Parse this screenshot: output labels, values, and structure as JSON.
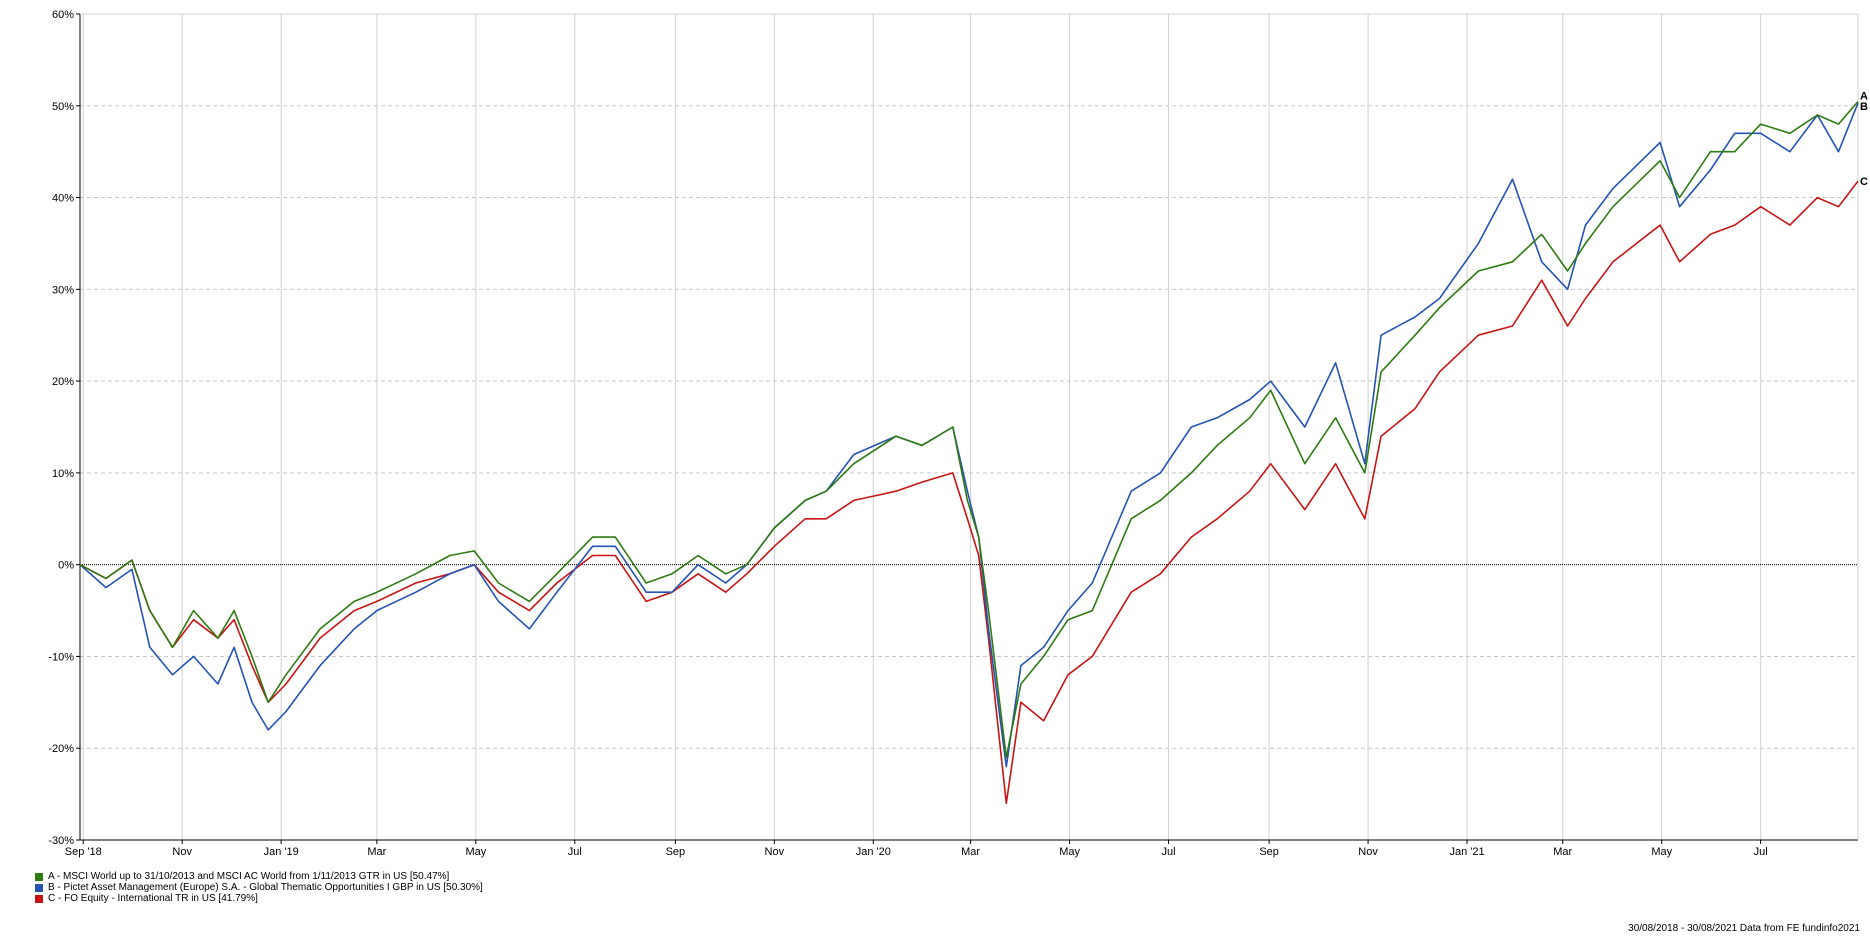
{
  "chart_data": {
    "type": "line",
    "title": "",
    "xlabel": "",
    "ylabel": "",
    "ylim": [
      -30,
      60
    ],
    "yticks": [
      -30,
      -20,
      -10,
      0,
      10,
      20,
      30,
      40,
      50,
      60
    ],
    "ytick_labels": [
      "-30%",
      "-20%",
      "-10%",
      "0%",
      "10%",
      "20%",
      "30%",
      "40%",
      "50%",
      "60%"
    ],
    "xrange": [
      "2018-08-30",
      "2021-08-30"
    ],
    "xticks": [
      {
        "date": "2018-09-01",
        "label": "Sep '18"
      },
      {
        "date": "2018-11-01",
        "label": "Nov"
      },
      {
        "date": "2019-01-01",
        "label": "Jan '19"
      },
      {
        "date": "2019-03-01",
        "label": "Mar"
      },
      {
        "date": "2019-05-01",
        "label": "May"
      },
      {
        "date": "2019-07-01",
        "label": "Jul"
      },
      {
        "date": "2019-09-01",
        "label": "Sep"
      },
      {
        "date": "2019-11-01",
        "label": "Nov"
      },
      {
        "date": "2020-01-01",
        "label": "Jan '20"
      },
      {
        "date": "2020-03-01",
        "label": "Mar"
      },
      {
        "date": "2020-05-01",
        "label": "May"
      },
      {
        "date": "2020-07-01",
        "label": "Jul"
      },
      {
        "date": "2020-09-01",
        "label": "Sep"
      },
      {
        "date": "2020-11-01",
        "label": "Nov"
      },
      {
        "date": "2021-01-01",
        "label": "Jan '21"
      },
      {
        "date": "2021-03-01",
        "label": "Mar"
      },
      {
        "date": "2021-05-01",
        "label": "May"
      },
      {
        "date": "2021-07-01",
        "label": "Jul"
      }
    ],
    "grid": true,
    "zero_line": true,
    "legend_position": "bottom-left",
    "series": [
      {
        "id": "A",
        "name": "A - MSCI World up to 31/10/2013 and MSCI AC World from 1/11/2013 GTR in US [50.47%]",
        "color": "#2f7a12",
        "x": [
          "2018-08-30",
          "2018-09-15",
          "2018-10-01",
          "2018-10-12",
          "2018-10-26",
          "2018-11-08",
          "2018-11-23",
          "2018-12-03",
          "2018-12-14",
          "2018-12-24",
          "2019-01-04",
          "2019-01-25",
          "2019-02-15",
          "2019-03-01",
          "2019-03-25",
          "2019-04-15",
          "2019-04-30",
          "2019-05-15",
          "2019-06-03",
          "2019-06-20",
          "2019-07-12",
          "2019-07-26",
          "2019-08-14",
          "2019-08-30",
          "2019-09-15",
          "2019-10-02",
          "2019-10-15",
          "2019-11-01",
          "2019-11-20",
          "2019-12-03",
          "2019-12-20",
          "2020-01-15",
          "2020-01-31",
          "2020-02-19",
          "2020-02-28",
          "2020-03-06",
          "2020-03-12",
          "2020-03-23",
          "2020-04-01",
          "2020-04-15",
          "2020-04-30",
          "2020-05-15",
          "2020-06-08",
          "2020-06-26",
          "2020-07-15",
          "2020-07-31",
          "2020-08-20",
          "2020-09-02",
          "2020-09-23",
          "2020-10-12",
          "2020-10-30",
          "2020-11-09",
          "2020-11-30",
          "2020-12-15",
          "2021-01-08",
          "2021-01-29",
          "2021-02-16",
          "2021-03-04",
          "2021-03-15",
          "2021-04-01",
          "2021-04-30",
          "2021-05-12",
          "2021-05-31",
          "2021-06-15",
          "2021-07-01",
          "2021-07-19",
          "2021-08-05",
          "2021-08-18",
          "2021-08-30"
        ],
        "y": [
          0,
          -1.5,
          0.5,
          -5,
          -9,
          -5,
          -8,
          -5,
          -10,
          -15,
          -12,
          -7,
          -4,
          -3,
          -1,
          1,
          1.5,
          -2,
          -4,
          -1,
          3,
          3,
          -2,
          -1,
          1,
          -1,
          0,
          4,
          7,
          8,
          11,
          14,
          13,
          15,
          7,
          3,
          -5,
          -21,
          -13,
          -10,
          -6,
          -5,
          5,
          7,
          10,
          13,
          16,
          19,
          11,
          16,
          10,
          21,
          25,
          28,
          32,
          33,
          36,
          32,
          35,
          39,
          44,
          40,
          45,
          45,
          48,
          47,
          49,
          48,
          50.47
        ]
      },
      {
        "id": "B",
        "name": "B - Pictet Asset Management (Europe) S.A. - Global Thematic Opportunities I GBP in US [50.30%]",
        "color": "#2453b4",
        "x": [
          "2018-08-30",
          "2018-09-15",
          "2018-10-01",
          "2018-10-12",
          "2018-10-26",
          "2018-11-08",
          "2018-11-23",
          "2018-12-03",
          "2018-12-14",
          "2018-12-24",
          "2019-01-04",
          "2019-01-25",
          "2019-02-15",
          "2019-03-01",
          "2019-03-25",
          "2019-04-15",
          "2019-04-30",
          "2019-05-15",
          "2019-06-03",
          "2019-06-20",
          "2019-07-12",
          "2019-07-26",
          "2019-08-14",
          "2019-08-30",
          "2019-09-15",
          "2019-10-02",
          "2019-10-15",
          "2019-11-01",
          "2019-11-20",
          "2019-12-03",
          "2019-12-20",
          "2020-01-15",
          "2020-01-31",
          "2020-02-19",
          "2020-02-28",
          "2020-03-06",
          "2020-03-12",
          "2020-03-23",
          "2020-04-01",
          "2020-04-15",
          "2020-04-30",
          "2020-05-15",
          "2020-06-08",
          "2020-06-26",
          "2020-07-15",
          "2020-07-31",
          "2020-08-20",
          "2020-09-02",
          "2020-09-23",
          "2020-10-12",
          "2020-10-30",
          "2020-11-09",
          "2020-11-30",
          "2020-12-15",
          "2021-01-08",
          "2021-01-29",
          "2021-02-16",
          "2021-03-04",
          "2021-03-15",
          "2021-04-01",
          "2021-04-30",
          "2021-05-12",
          "2021-05-31",
          "2021-06-15",
          "2021-07-01",
          "2021-07-19",
          "2021-08-05",
          "2021-08-18",
          "2021-08-30"
        ],
        "y": [
          0,
          -2.5,
          -0.5,
          -9,
          -12,
          -10,
          -13,
          -9,
          -15,
          -18,
          -16,
          -11,
          -7,
          -5,
          -3,
          -1,
          0,
          -4,
          -7,
          -3,
          2,
          2,
          -3,
          -3,
          0,
          -2,
          0,
          4,
          7,
          8,
          12,
          14,
          13,
          15,
          8,
          3,
          -7,
          -22,
          -11,
          -9,
          -5,
          -2,
          8,
          10,
          15,
          16,
          18,
          20,
          15,
          22,
          11,
          25,
          27,
          29,
          35,
          42,
          33,
          30,
          37,
          41,
          46,
          39,
          43,
          47,
          47,
          45,
          49,
          45,
          50.3
        ]
      },
      {
        "id": "C",
        "name": "C - FO Equity - International TR in US [41.79%]",
        "color": "#c81414",
        "x": [
          "2018-08-30",
          "2018-09-15",
          "2018-10-01",
          "2018-10-12",
          "2018-10-26",
          "2018-11-08",
          "2018-11-23",
          "2018-12-03",
          "2018-12-14",
          "2018-12-24",
          "2019-01-04",
          "2019-01-25",
          "2019-02-15",
          "2019-03-01",
          "2019-03-25",
          "2019-04-15",
          "2019-04-30",
          "2019-05-15",
          "2019-06-03",
          "2019-06-20",
          "2019-07-12",
          "2019-07-26",
          "2019-08-14",
          "2019-08-30",
          "2019-09-15",
          "2019-10-02",
          "2019-10-15",
          "2019-11-01",
          "2019-11-20",
          "2019-12-03",
          "2019-12-20",
          "2020-01-15",
          "2020-01-31",
          "2020-02-19",
          "2020-02-28",
          "2020-03-06",
          "2020-03-12",
          "2020-03-23",
          "2020-04-01",
          "2020-04-15",
          "2020-04-30",
          "2020-05-15",
          "2020-06-08",
          "2020-06-26",
          "2020-07-15",
          "2020-07-31",
          "2020-08-20",
          "2020-09-02",
          "2020-09-23",
          "2020-10-12",
          "2020-10-30",
          "2020-11-09",
          "2020-11-30",
          "2020-12-15",
          "2021-01-08",
          "2021-01-29",
          "2021-02-16",
          "2021-03-04",
          "2021-03-15",
          "2021-04-01",
          "2021-04-30",
          "2021-05-12",
          "2021-05-31",
          "2021-06-15",
          "2021-07-01",
          "2021-07-19",
          "2021-08-05",
          "2021-08-18",
          "2021-08-30"
        ],
        "y": [
          0,
          -1.5,
          0.5,
          -5,
          -9,
          -6,
          -8,
          -6,
          -11,
          -15,
          -13,
          -8,
          -5,
          -4,
          -2,
          -1,
          0,
          -3,
          -5,
          -2,
          1,
          1,
          -4,
          -3,
          -1,
          -3,
          -1,
          2,
          5,
          5,
          7,
          8,
          9,
          10,
          5,
          1,
          -8,
          -26,
          -15,
          -17,
          -12,
          -10,
          -3,
          -1,
          3,
          5,
          8,
          11,
          6,
          11,
          5,
          14,
          17,
          21,
          25,
          26,
          31,
          26,
          29,
          33,
          37,
          33,
          36,
          37,
          39,
          37,
          40,
          39,
          41.79
        ]
      }
    ],
    "end_labels": [
      "A",
      "B",
      "C"
    ],
    "footer": "30/08/2018 - 30/08/2021 Data from FE fundinfo2021"
  }
}
